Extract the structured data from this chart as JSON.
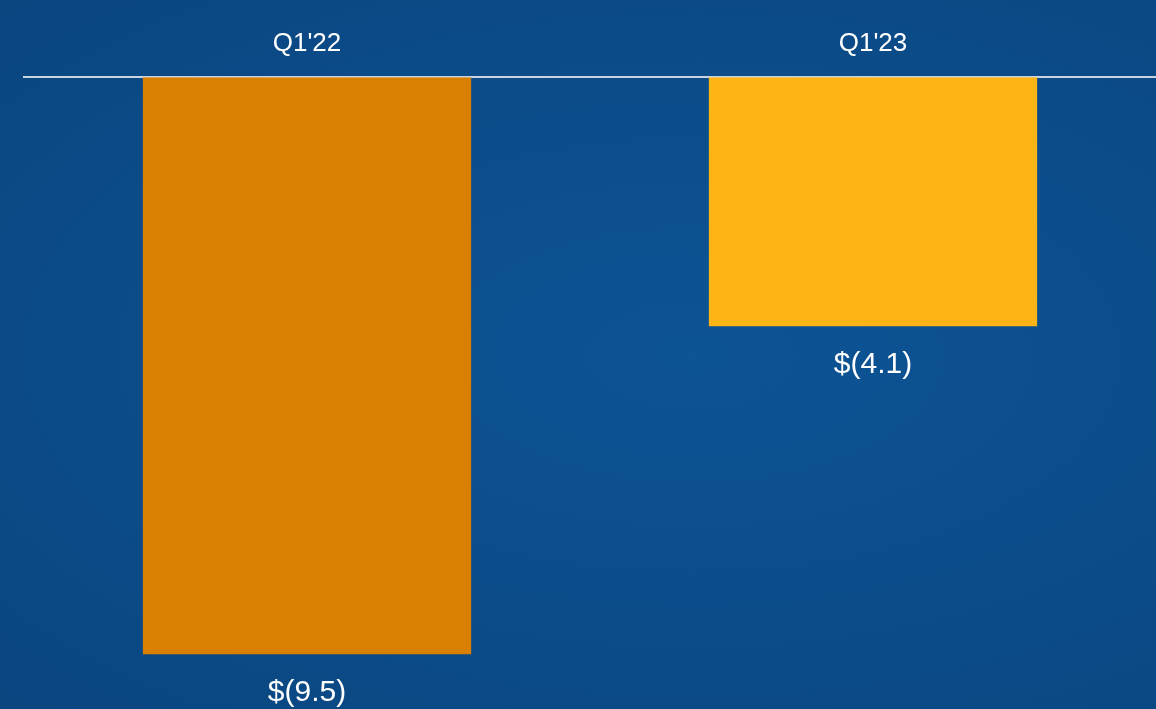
{
  "chart_data": {
    "type": "bar",
    "categories": [
      "Q1'22",
      "Q1'23"
    ],
    "values": [
      -9.5,
      -4.1
    ],
    "colors": [
      "#d98003",
      "#fdb515"
    ],
    "value_labels": [
      "$(9.5)",
      "$(4.1)"
    ],
    "ylim": [
      -10.4,
      0
    ],
    "tick_labels": "x",
    "grid": false,
    "legend": false
  }
}
